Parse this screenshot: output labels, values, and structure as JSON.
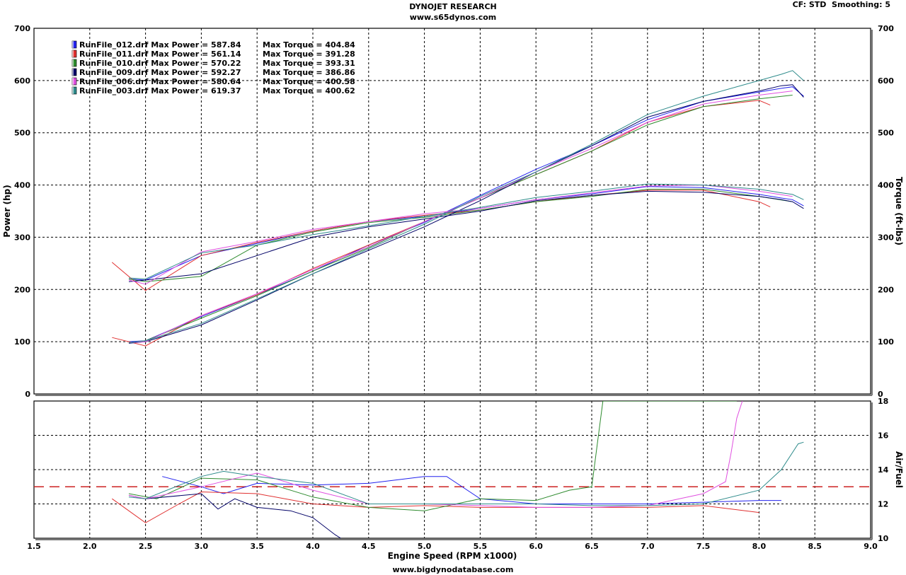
{
  "header": {
    "title": "DYNOJET RESEARCH",
    "subtitle": "www.s65dynos.com",
    "settings": "CF: STD  Smoothing: 5",
    "footer": "www.bigdynodatabase.com"
  },
  "colors": {
    "RunFile_012": "#2222ee",
    "RunFile_011": "#e03030",
    "RunFile_010": "#2e8b2e",
    "RunFile_009": "#000066",
    "RunFile_006": "#e050e0",
    "RunFile_003": "#2e8b8b",
    "target_line": "#cc2222",
    "grid": "#000000"
  },
  "chart_data": [
    {
      "type": "line",
      "name": "power-torque",
      "xlabel": "Engine Speed (RPM x1000)",
      "ylabel": "Power (hp)",
      "ylabel_right": "Torque (ft-lbs)",
      "xlim": [
        1.5,
        9.0
      ],
      "ylim": [
        0,
        700
      ],
      "xticks": [
        "1.5",
        "2.0",
        "2.5",
        "3.0",
        "3.5",
        "4.0",
        "4.5",
        "5.0",
        "5.5",
        "6.0",
        "6.5",
        "7.0",
        "7.5",
        "8.0",
        "8.5",
        "9.0"
      ],
      "yticks": [
        "0",
        "100",
        "200",
        "300",
        "400",
        "500",
        "600",
        "700"
      ],
      "legend_position": "top-left",
      "legend": [
        {
          "file": "RunFile_012.drf",
          "power_label": "Max Power = 587.84",
          "torque_label": "Max Torque = 404.84"
        },
        {
          "file": "RunFile_011.drf",
          "power_label": "Max Power = 561.14",
          "torque_label": "Max Torque = 391.28"
        },
        {
          "file": "RunFile_010.drf",
          "power_label": "Max Power = 570.22",
          "torque_label": "Max Torque = 393.31"
        },
        {
          "file": "RunFile_009.drf",
          "power_label": "Max Power = 592.27",
          "torque_label": "Max Torque = 386.86"
        },
        {
          "file": "RunFile_006.drf",
          "power_label": "Max Power = 580.64",
          "torque_label": "Max Torque = 400.58"
        },
        {
          "file": "RunFile_003.drf",
          "power_label": "Max Power = 619.37",
          "torque_label": "Max Torque = 400.62"
        }
      ],
      "series": [
        {
          "name": "RunFile_012.drf",
          "kind": "power",
          "color_key": "RunFile_012",
          "x": [
            2.35,
            2.5,
            3.0,
            3.5,
            4.0,
            4.5,
            5.0,
            5.5,
            6.0,
            6.5,
            7.0,
            7.5,
            8.0,
            8.2,
            8.3,
            8.4
          ],
          "y": [
            100,
            102,
            148,
            190,
            235,
            285,
            328,
            380,
            430,
            475,
            525,
            560,
            578,
            585,
            588,
            570
          ]
        },
        {
          "name": "RunFile_012.drf",
          "kind": "torque",
          "color_key": "RunFile_012",
          "x": [
            2.35,
            2.5,
            3.0,
            3.5,
            4.0,
            4.5,
            5.0,
            5.5,
            6.0,
            6.5,
            7.0,
            7.5,
            8.0,
            8.2,
            8.3,
            8.4
          ],
          "y": [
            220,
            218,
            265,
            288,
            312,
            330,
            340,
            355,
            372,
            383,
            397,
            395,
            382,
            375,
            372,
            360
          ]
        },
        {
          "name": "RunFile_011.drf",
          "kind": "power",
          "color_key": "RunFile_011",
          "x": [
            2.2,
            2.5,
            3.0,
            3.5,
            4.0,
            4.5,
            5.0,
            5.5,
            6.0,
            6.5,
            7.0,
            7.5,
            8.0,
            8.1
          ],
          "y": [
            108,
            92,
            150,
            190,
            240,
            285,
            330,
            375,
            420,
            465,
            520,
            550,
            562,
            553
          ]
        },
        {
          "name": "RunFile_011.drf",
          "kind": "torque",
          "color_key": "RunFile_011",
          "x": [
            2.2,
            2.5,
            3.0,
            3.5,
            4.0,
            4.5,
            5.0,
            5.5,
            6.0,
            6.5,
            7.0,
            7.5,
            8.0,
            8.1
          ],
          "y": [
            252,
            198,
            265,
            290,
            312,
            330,
            342,
            352,
            368,
            380,
            390,
            390,
            368,
            358
          ]
        },
        {
          "name": "RunFile_010.drf",
          "kind": "power",
          "color_key": "RunFile_010",
          "x": [
            2.35,
            2.5,
            3.0,
            3.5,
            4.0,
            4.5,
            5.0,
            5.5,
            6.0,
            6.5,
            7.0,
            7.5,
            8.0,
            8.3
          ],
          "y": [
            98,
            102,
            145,
            188,
            235,
            280,
            330,
            375,
            420,
            465,
            515,
            550,
            565,
            572
          ]
        },
        {
          "name": "RunFile_010.drf",
          "kind": "torque",
          "color_key": "RunFile_010",
          "x": [
            2.35,
            2.5,
            3.0,
            3.5,
            4.0,
            4.5,
            5.0,
            5.5,
            6.0,
            6.5,
            7.0,
            7.5,
            8.0,
            8.3
          ],
          "y": [
            220,
            215,
            225,
            285,
            310,
            328,
            338,
            352,
            368,
            378,
            392,
            392,
            378,
            368
          ]
        },
        {
          "name": "RunFile_009.drf",
          "kind": "power",
          "color_key": "RunFile_009",
          "x": [
            2.35,
            2.5,
            3.0,
            3.5,
            4.0,
            4.5,
            5.0,
            5.5,
            6.0,
            6.5,
            7.0,
            7.5,
            8.0,
            8.2,
            8.3,
            8.4
          ],
          "y": [
            97,
            100,
            132,
            180,
            230,
            275,
            320,
            370,
            425,
            475,
            530,
            560,
            580,
            590,
            592,
            568
          ]
        },
        {
          "name": "RunFile_009.drf",
          "kind": "torque",
          "color_key": "RunFile_009",
          "x": [
            2.35,
            2.5,
            3.0,
            3.5,
            4.0,
            4.5,
            5.0,
            5.5,
            6.0,
            6.5,
            7.0,
            7.5,
            8.0,
            8.2,
            8.3,
            8.4
          ],
          "y": [
            215,
            218,
            230,
            265,
            300,
            320,
            335,
            350,
            370,
            380,
            388,
            386,
            378,
            372,
            368,
            355
          ]
        },
        {
          "name": "RunFile_006.drf",
          "kind": "power",
          "color_key": "RunFile_006",
          "x": [
            2.35,
            2.5,
            3.0,
            3.5,
            4.0,
            4.5,
            5.0,
            5.5,
            6.0,
            6.5,
            7.0,
            7.5,
            8.0,
            8.3
          ],
          "y": [
            98,
            100,
            150,
            192,
            238,
            282,
            330,
            375,
            425,
            470,
            520,
            555,
            572,
            580
          ]
        },
        {
          "name": "RunFile_006.drf",
          "kind": "torque",
          "color_key": "RunFile_006",
          "x": [
            2.35,
            2.5,
            3.0,
            3.5,
            4.0,
            4.5,
            5.0,
            5.5,
            6.0,
            6.5,
            7.0,
            7.5,
            8.0,
            8.3
          ],
          "y": [
            218,
            210,
            272,
            292,
            315,
            330,
            345,
            355,
            372,
            385,
            398,
            400,
            388,
            378
          ]
        },
        {
          "name": "RunFile_003.drf",
          "kind": "power",
          "color_key": "RunFile_003",
          "x": [
            2.35,
            2.5,
            3.0,
            3.5,
            4.0,
            4.5,
            5.0,
            5.5,
            6.0,
            6.5,
            7.0,
            7.5,
            8.0,
            8.2,
            8.3,
            8.4
          ],
          "y": [
            98,
            102,
            135,
            182,
            230,
            278,
            325,
            378,
            425,
            478,
            535,
            570,
            600,
            612,
            619,
            600
          ]
        },
        {
          "name": "RunFile_003.drf",
          "kind": "torque",
          "color_key": "RunFile_003",
          "x": [
            2.35,
            2.5,
            3.0,
            3.5,
            4.0,
            4.5,
            5.0,
            5.5,
            6.0,
            6.5,
            7.0,
            7.5,
            8.0,
            8.2,
            8.3,
            8.4
          ],
          "y": [
            222,
            220,
            270,
            285,
            305,
            322,
            340,
            357,
            376,
            388,
            402,
            400,
            392,
            385,
            382,
            372
          ]
        }
      ]
    },
    {
      "type": "line",
      "name": "air-fuel",
      "xlabel": "Engine Speed (RPM x1000)",
      "ylabel_right": "Air/Fuel",
      "xlim": [
        1.5,
        9.0
      ],
      "ylim": [
        10,
        18
      ],
      "yticks": [
        "10",
        "12",
        "14",
        "16",
        "18"
      ],
      "reference_line": 13.0,
      "series": [
        {
          "name": "RunFile_012.drf",
          "color_key": "RunFile_012",
          "x": [
            2.65,
            3.0,
            3.2,
            3.5,
            4.0,
            4.5,
            5.0,
            5.2,
            5.5,
            6.0,
            6.5,
            7.0,
            7.5,
            8.0,
            8.2
          ],
          "y": [
            13.6,
            13.0,
            12.6,
            13.2,
            13.1,
            13.2,
            13.6,
            13.6,
            12.3,
            12.0,
            12.0,
            12.0,
            12.1,
            12.2,
            12.2
          ]
        },
        {
          "name": "RunFile_011.drf",
          "color_key": "RunFile_011",
          "x": [
            2.2,
            2.5,
            2.8,
            3.0,
            3.5,
            4.0,
            4.5,
            5.0,
            5.5,
            6.0,
            6.5,
            7.0,
            7.5,
            8.0
          ],
          "y": [
            12.3,
            10.9,
            12.0,
            12.7,
            12.6,
            12.0,
            11.8,
            11.9,
            11.8,
            11.8,
            11.8,
            11.8,
            11.9,
            11.5
          ]
        },
        {
          "name": "RunFile_010.drf",
          "color_key": "RunFile_010",
          "x": [
            2.35,
            2.6,
            3.0,
            3.5,
            4.0,
            4.5,
            5.0,
            5.5,
            6.0,
            6.3,
            6.5,
            6.55,
            6.6,
            7.0,
            7.5,
            7.8
          ],
          "y": [
            12.6,
            12.3,
            13.5,
            13.4,
            12.4,
            11.8,
            11.6,
            12.3,
            12.2,
            12.8,
            13.0,
            15.5,
            18.0,
            18.0,
            18.0,
            18.0
          ]
        },
        {
          "name": "RunFile_009.drf",
          "color_key": "RunFile_009",
          "x": [
            2.35,
            2.5,
            3.0,
            3.15,
            3.3,
            3.5,
            3.8,
            4.0,
            4.2,
            4.25
          ],
          "y": [
            12.5,
            12.3,
            12.6,
            11.7,
            12.3,
            11.8,
            11.6,
            11.2,
            10.2,
            10.0
          ]
        },
        {
          "name": "RunFile_006.drf",
          "color_key": "RunFile_006",
          "x": [
            2.35,
            2.5,
            3.0,
            3.5,
            4.0,
            4.5,
            5.0,
            5.5,
            6.0,
            6.5,
            7.0,
            7.5,
            7.7,
            7.75,
            7.8,
            7.85
          ],
          "y": [
            12.5,
            12.3,
            13.0,
            13.8,
            12.8,
            12.0,
            12.0,
            11.9,
            11.8,
            11.8,
            11.9,
            12.6,
            13.3,
            15.0,
            17.0,
            18.0
          ]
        },
        {
          "name": "RunFile_003.drf",
          "color_key": "RunFile_003",
          "x": [
            2.35,
            2.5,
            3.0,
            3.2,
            3.5,
            4.0,
            4.5,
            5.0,
            5.5,
            6.0,
            6.5,
            7.0,
            7.5,
            8.0,
            8.2,
            8.35,
            8.4
          ],
          "y": [
            12.4,
            12.3,
            13.6,
            13.9,
            13.6,
            13.2,
            12.0,
            12.0,
            12.0,
            12.0,
            11.9,
            11.9,
            12.0,
            12.8,
            14.0,
            15.5,
            15.6
          ]
        }
      ]
    }
  ]
}
